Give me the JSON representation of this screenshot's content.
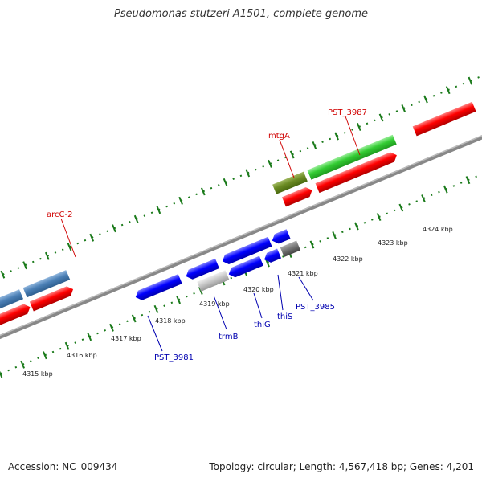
{
  "title": "Pseudomonas stutzeri A1501, complete genome",
  "footer": {
    "accession": "Accession: NC_009434",
    "summary": "Topology: circular; Length: 4,567,418 bp; Genes: 4,201"
  },
  "scale_labels": [
    "4315 kbp",
    "4316 kbp",
    "4317 kbp",
    "4318 kbp",
    "4319 kbp",
    "4320 kbp",
    "4321 kbp",
    "4322 kbp",
    "4323 kbp",
    "4324 kbp"
  ],
  "forward_labels": [
    "arcC-2",
    "mtgA",
    "PST_3987"
  ],
  "reverse_labels": [
    "PST_3981",
    "trmB",
    "thiG",
    "thiS",
    "PST_3985"
  ],
  "colors": {
    "forward_gene": "#ff0000",
    "reverse_gene": "#0000ff",
    "steelblue_feature": "#4a7fb5",
    "olive_feature": "#6b8b23",
    "green_feature": "#33cc33",
    "gray_feature": "#c8c8c8",
    "darkgray_feature": "#777777",
    "tick": "#1a7a1a",
    "backbone": "#888888"
  }
}
